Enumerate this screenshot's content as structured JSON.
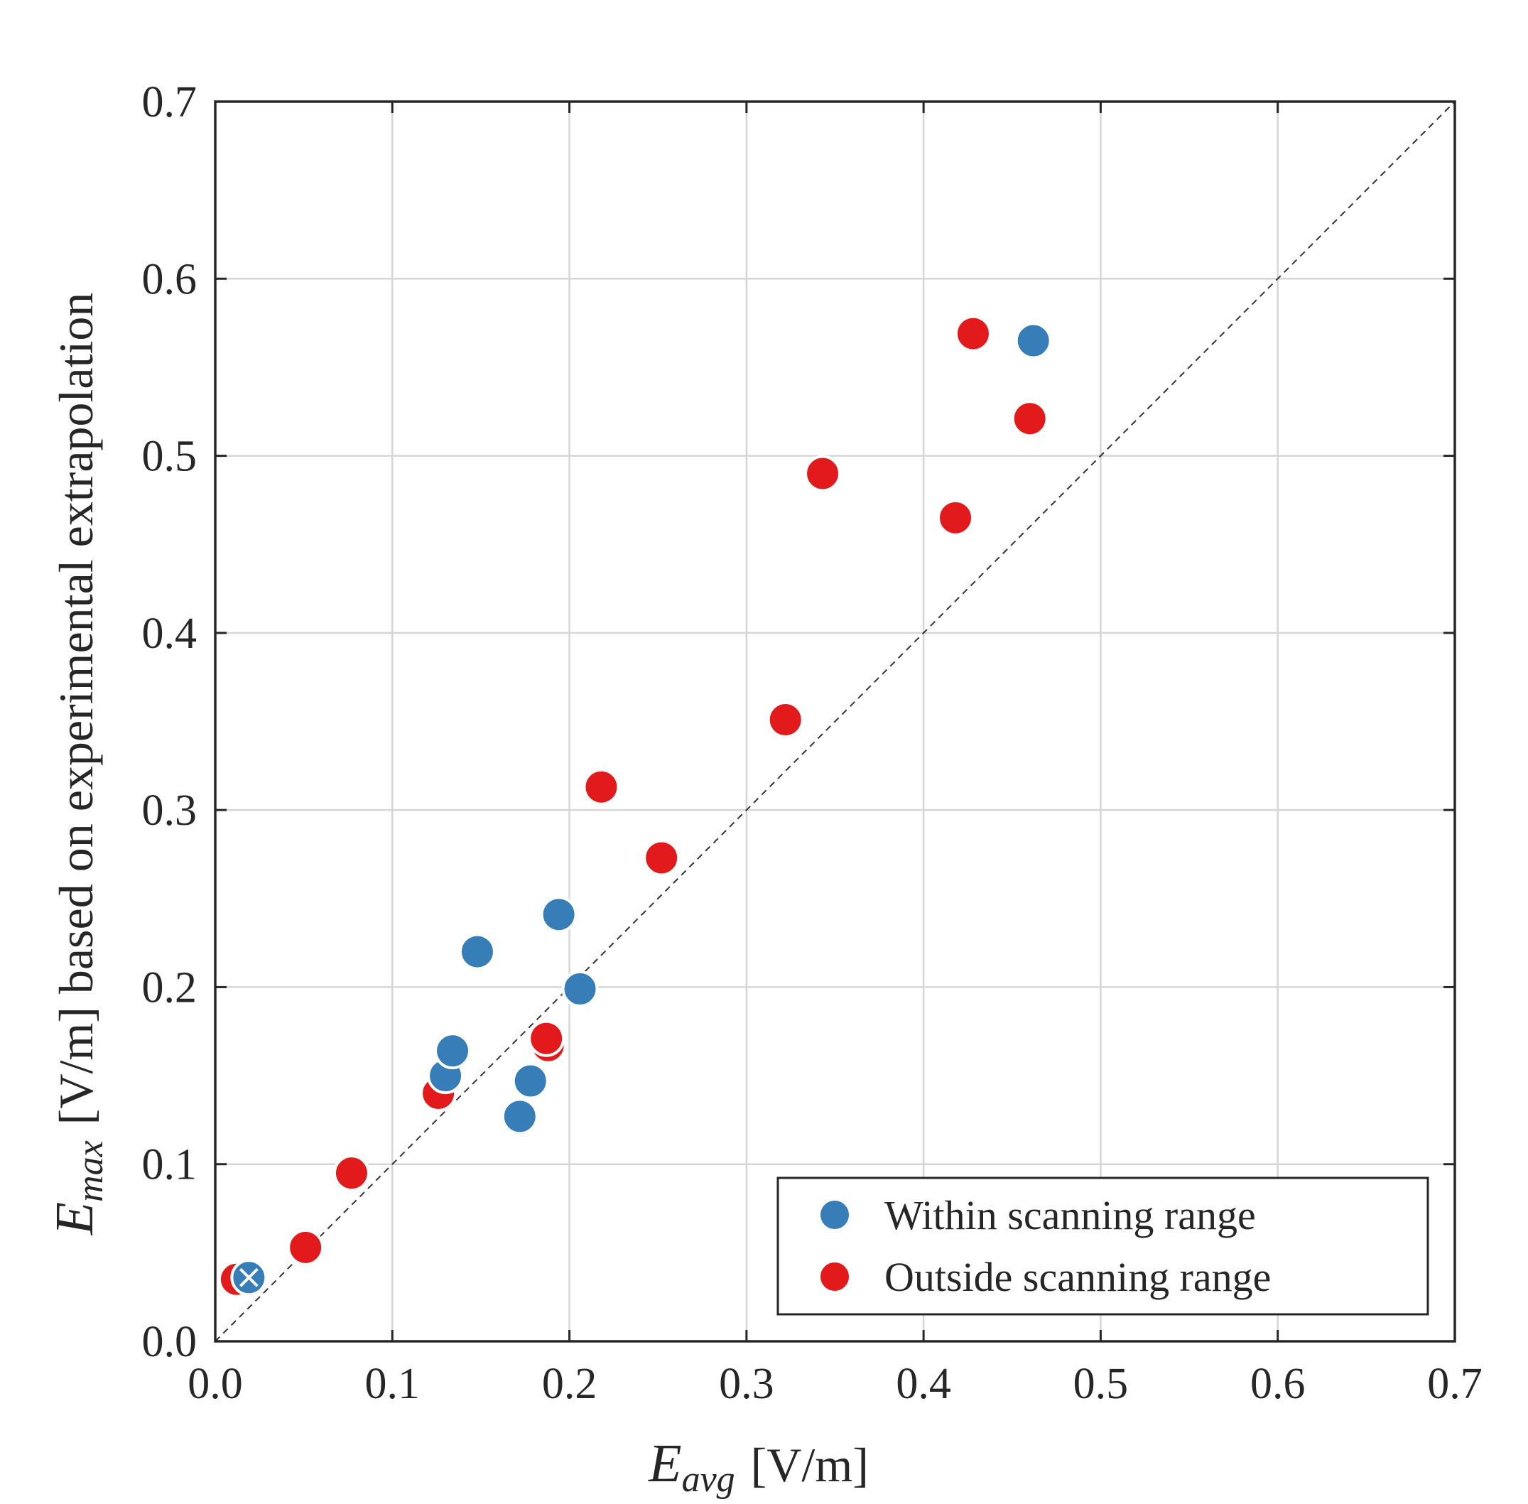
{
  "chart_data": {
    "type": "scatter",
    "xlabel": {
      "symbol": "E",
      "subscript": "avg",
      "unit": "[V/m]"
    },
    "ylabel": {
      "symbol": "E",
      "subscript": "max",
      "unit": "[V/m]",
      "text": "based on experimental extrapolation"
    },
    "xlim": [
      0,
      0.7
    ],
    "ylim": [
      0,
      0.7
    ],
    "xticks": [
      "0.0",
      "0.1",
      "0.2",
      "0.3",
      "0.4",
      "0.5",
      "0.6",
      "0.7"
    ],
    "yticks": [
      "0.0",
      "0.1",
      "0.2",
      "0.3",
      "0.4",
      "0.5",
      "0.6",
      "0.7"
    ],
    "grid": true,
    "reference_line": "y = x (dashed)",
    "legend_position": "bottom-right",
    "series": [
      {
        "name": "Outside scanning range",
        "color": "#e31a1c",
        "points": [
          {
            "x": 0.012,
            "y": 0.035
          },
          {
            "x": 0.051,
            "y": 0.053
          },
          {
            "x": 0.077,
            "y": 0.095
          },
          {
            "x": 0.126,
            "y": 0.14
          },
          {
            "x": 0.188,
            "y": 0.167
          },
          {
            "x": 0.187,
            "y": 0.171
          },
          {
            "x": 0.218,
            "y": 0.313
          },
          {
            "x": 0.252,
            "y": 0.273
          },
          {
            "x": 0.322,
            "y": 0.351
          },
          {
            "x": 0.343,
            "y": 0.49
          },
          {
            "x": 0.418,
            "y": 0.465
          },
          {
            "x": 0.428,
            "y": 0.569
          },
          {
            "x": 0.46,
            "y": 0.521
          }
        ]
      },
      {
        "name": "Within scanning range",
        "color": "#377eb8",
        "points": [
          {
            "x": 0.019,
            "y": 0.036,
            "marker": "x-overlay"
          },
          {
            "x": 0.13,
            "y": 0.15
          },
          {
            "x": 0.134,
            "y": 0.164
          },
          {
            "x": 0.148,
            "y": 0.22
          },
          {
            "x": 0.172,
            "y": 0.127
          },
          {
            "x": 0.178,
            "y": 0.147
          },
          {
            "x": 0.194,
            "y": 0.241
          },
          {
            "x": 0.206,
            "y": 0.199
          },
          {
            "x": 0.462,
            "y": 0.565
          }
        ]
      }
    ],
    "legend_order": [
      "Within scanning range",
      "Outside scanning range"
    ]
  }
}
